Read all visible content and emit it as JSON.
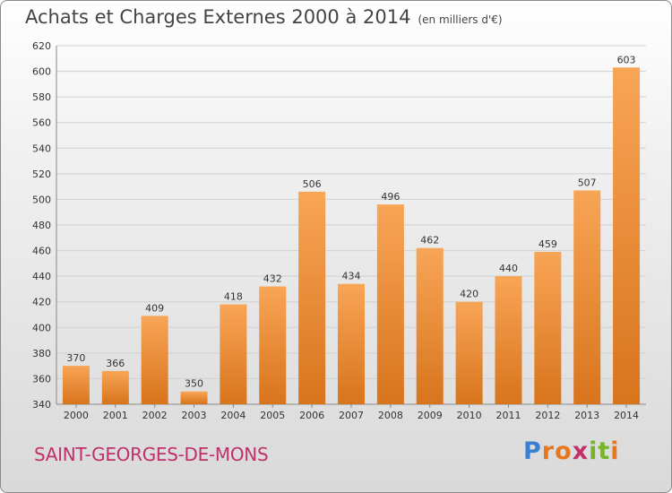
{
  "title": "Achats et Charges Externes 2000 à 2014",
  "subtitle": "(en milliers d'€)",
  "town": "SAINT-GEORGES-DE-MONS",
  "logo": {
    "text": "Proxiti",
    "letters": [
      {
        "ch": "P",
        "color": "#3a7fd0"
      },
      {
        "ch": "r",
        "color": "#e8761c"
      },
      {
        "ch": "o",
        "color": "#e8761c"
      },
      {
        "ch": "x",
        "color": "#c0306a"
      },
      {
        "ch": "i",
        "color": "#78b42a"
      },
      {
        "ch": "t",
        "color": "#78b42a"
      },
      {
        "ch": "i",
        "color": "#e8761c"
      }
    ]
  },
  "colors": {
    "bar_light": "#f8a556",
    "bar_dark": "#d8741c",
    "grid": "#d0d0d0",
    "axis": "#888888"
  },
  "chart_data": {
    "type": "bar",
    "title": "Achats et Charges Externes 2000 à 2014",
    "subtitle": "(en milliers d'€)",
    "categories": [
      "2000",
      "2001",
      "2002",
      "2003",
      "2004",
      "2005",
      "2006",
      "2007",
      "2008",
      "2009",
      "2010",
      "2011",
      "2012",
      "2013",
      "2014"
    ],
    "values": [
      370,
      366,
      409,
      350,
      418,
      432,
      506,
      434,
      496,
      462,
      420,
      440,
      459,
      507,
      603
    ],
    "ylim": [
      340,
      620
    ],
    "yticks": [
      340,
      360,
      380,
      400,
      420,
      440,
      460,
      480,
      500,
      520,
      540,
      560,
      580,
      600,
      620
    ],
    "grid": true
  }
}
